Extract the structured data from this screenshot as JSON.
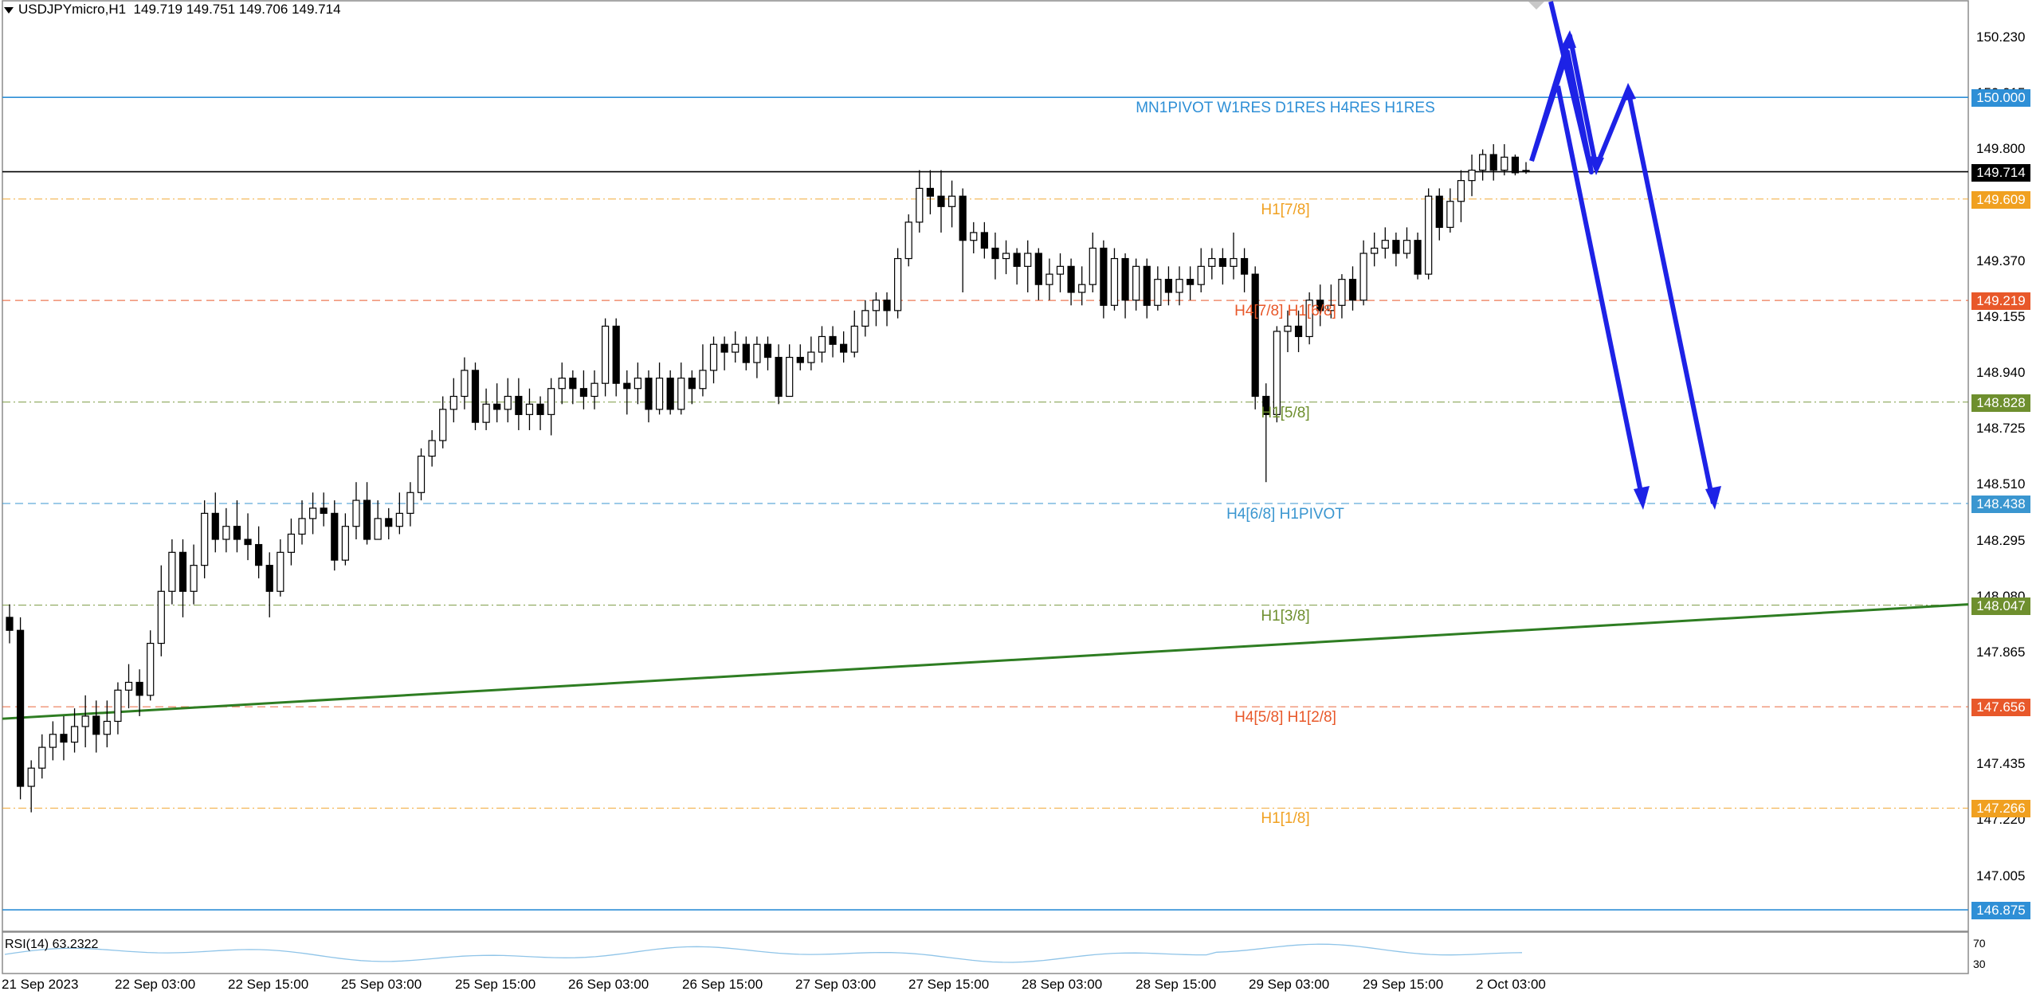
{
  "header": {
    "symbol": "USDJPYmicro,H1",
    "ohlc": "149.719 149.751 149.706 149.714"
  },
  "indicator": {
    "rsi_label": "RSI(14) 63.2322",
    "axis": [
      "70",
      "30"
    ]
  },
  "price_axis": {
    "range": [
      146.82,
      150.35
    ],
    "ticks": [
      "150.230",
      "150.015",
      "149.800",
      "149.370",
      "149.155",
      "148.940",
      "148.725",
      "148.510",
      "148.295",
      "148.080",
      "147.865",
      "147.435",
      "147.220",
      "147.005"
    ]
  },
  "time_axis": {
    "labels": [
      "21 Sep 2023",
      "22 Sep 03:00",
      "22 Sep 15:00",
      "25 Sep 03:00",
      "25 Sep 15:00",
      "26 Sep 03:00",
      "26 Sep 15:00",
      "27 Sep 03:00",
      "27 Sep 15:00",
      "28 Sep 03:00",
      "28 Sep 15:00",
      "29 Sep 03:00",
      "29 Sep 15:00",
      "2 Oct 03:00"
    ]
  },
  "levels": [
    {
      "price": 150.0,
      "tag": "150.000",
      "label": "MN1PIVOT W1RES D1RES H4RES H1RES",
      "color": "#2e8fd6",
      "style": "solid"
    },
    {
      "price": 149.714,
      "tag": "149.714",
      "label": "",
      "color": "#000000",
      "style": "solid"
    },
    {
      "price": 149.609,
      "tag": "149.609",
      "label": "H1[7/8]",
      "color": "#f0a020",
      "style": "dashdot"
    },
    {
      "price": 149.219,
      "tag": "149.219",
      "label": "H4[7/8] H1[6/8]",
      "color": "#e8582a",
      "style": "dashed"
    },
    {
      "price": 148.828,
      "tag": "148.828",
      "label": "H1[5/8]",
      "color": "#6e8f2e",
      "style": "dashdot"
    },
    {
      "price": 148.438,
      "tag": "148.438",
      "label": "H4[6/8] H1PIVOT",
      "color": "#3a96d0",
      "style": "dashed"
    },
    {
      "price": 148.047,
      "tag": "148.047",
      "label": "H1[3/8]",
      "color": "#6e8f2e",
      "style": "dashdot"
    },
    {
      "price": 147.656,
      "tag": "147.656",
      "label": "H4[5/8] H1[2/8]",
      "color": "#e8582a",
      "style": "dashed"
    },
    {
      "price": 147.266,
      "tag": "147.266",
      "label": "H1[1/8]",
      "color": "#f0a020",
      "style": "dashdot"
    },
    {
      "price": 146.875,
      "tag": "146.875",
      "label": "",
      "color": "#2e8fd6",
      "style": "solid"
    }
  ],
  "trendline": {
    "color": "#2e7d22",
    "start_price": 147.61,
    "end_price": 148.05
  },
  "forecast_arrow_color": "#1d22e6",
  "candles": [
    [
      148.0,
      147.95,
      148.05,
      147.9
    ],
    [
      147.95,
      147.35,
      148.0,
      147.3
    ],
    [
      147.35,
      147.42,
      147.45,
      147.25
    ],
    [
      147.42,
      147.5,
      147.55,
      147.38
    ],
    [
      147.5,
      147.55,
      147.6,
      147.45
    ],
    [
      147.55,
      147.52,
      147.62,
      147.45
    ],
    [
      147.52,
      147.58,
      147.65,
      147.48
    ],
    [
      147.58,
      147.62,
      147.7,
      147.5
    ],
    [
      147.62,
      147.55,
      147.68,
      147.48
    ],
    [
      147.55,
      147.6,
      147.68,
      147.5
    ],
    [
      147.6,
      147.72,
      147.75,
      147.55
    ],
    [
      147.72,
      147.75,
      147.82,
      147.65
    ],
    [
      147.75,
      147.7,
      147.8,
      147.62
    ],
    [
      147.7,
      147.9,
      147.95,
      147.68
    ],
    [
      147.9,
      148.1,
      148.2,
      147.85
    ],
    [
      148.1,
      148.25,
      148.3,
      148.05
    ],
    [
      148.25,
      148.1,
      148.3,
      148.0
    ],
    [
      148.1,
      148.2,
      148.28,
      148.05
    ],
    [
      148.2,
      148.4,
      148.45,
      148.15
    ],
    [
      148.4,
      148.3,
      148.48,
      148.25
    ],
    [
      148.3,
      148.35,
      148.42,
      148.25
    ],
    [
      148.35,
      148.3,
      148.45,
      148.25
    ],
    [
      148.3,
      148.28,
      148.4,
      148.22
    ],
    [
      148.28,
      148.2,
      148.35,
      148.15
    ],
    [
      148.2,
      148.1,
      148.25,
      148.0
    ],
    [
      148.1,
      148.25,
      148.3,
      148.08
    ],
    [
      148.25,
      148.32,
      148.38,
      148.2
    ],
    [
      148.32,
      148.38,
      148.45,
      148.28
    ],
    [
      148.38,
      148.42,
      148.48,
      148.32
    ],
    [
      148.42,
      148.4,
      148.48,
      148.35
    ],
    [
      148.4,
      148.22,
      148.45,
      148.18
    ],
    [
      148.22,
      148.35,
      148.4,
      148.2
    ],
    [
      148.35,
      148.45,
      148.52,
      148.3
    ],
    [
      148.45,
      148.3,
      148.52,
      148.28
    ],
    [
      148.3,
      148.38,
      148.45,
      148.3
    ],
    [
      148.38,
      148.35,
      148.42,
      148.3
    ],
    [
      148.35,
      148.4,
      148.48,
      148.32
    ],
    [
      148.4,
      148.48,
      148.52,
      148.35
    ],
    [
      148.48,
      148.62,
      148.65,
      148.45
    ],
    [
      148.62,
      148.68,
      148.72,
      148.58
    ],
    [
      148.68,
      148.8,
      148.85,
      148.65
    ],
    [
      148.8,
      148.85,
      148.92,
      148.75
    ],
    [
      148.85,
      148.95,
      149.0,
      148.8
    ],
    [
      148.95,
      148.75,
      148.98,
      148.72
    ],
    [
      148.75,
      148.82,
      148.88,
      148.72
    ],
    [
      148.82,
      148.8,
      148.9,
      148.75
    ],
    [
      148.8,
      148.85,
      148.92,
      148.75
    ],
    [
      148.85,
      148.78,
      148.92,
      148.72
    ],
    [
      148.78,
      148.82,
      148.88,
      148.72
    ],
    [
      148.82,
      148.78,
      148.85,
      148.72
    ],
    [
      148.78,
      148.88,
      148.92,
      148.7
    ],
    [
      148.88,
      148.92,
      148.98,
      148.82
    ],
    [
      148.92,
      148.88,
      148.95,
      148.82
    ],
    [
      148.88,
      148.85,
      148.95,
      148.8
    ],
    [
      148.85,
      148.9,
      148.95,
      148.8
    ],
    [
      148.9,
      149.12,
      149.15,
      148.85
    ],
    [
      149.12,
      148.9,
      149.15,
      148.85
    ],
    [
      148.9,
      148.88,
      148.95,
      148.78
    ],
    [
      148.88,
      148.92,
      148.98,
      148.82
    ],
    [
      148.92,
      148.8,
      148.95,
      148.75
    ],
    [
      148.8,
      148.92,
      148.98,
      148.78
    ],
    [
      148.92,
      148.8,
      148.95,
      148.78
    ],
    [
      148.8,
      148.92,
      148.98,
      148.78
    ],
    [
      148.92,
      148.88,
      148.95,
      148.82
    ],
    [
      148.88,
      148.95,
      149.05,
      148.85
    ],
    [
      148.95,
      149.05,
      149.08,
      148.9
    ],
    [
      149.05,
      149.02,
      149.08,
      148.95
    ],
    [
      149.02,
      149.05,
      149.1,
      148.98
    ],
    [
      149.05,
      148.98,
      149.08,
      148.95
    ],
    [
      148.98,
      149.05,
      149.08,
      148.92
    ],
    [
      149.05,
      149.0,
      149.08,
      148.95
    ],
    [
      149.0,
      148.85,
      149.05,
      148.82
    ],
    [
      148.85,
      149.0,
      149.05,
      148.85
    ],
    [
      149.0,
      148.98,
      149.05,
      148.95
    ],
    [
      148.98,
      149.02,
      149.08,
      148.95
    ],
    [
      149.02,
      149.08,
      149.12,
      148.98
    ],
    [
      149.08,
      149.05,
      149.12,
      149.0
    ],
    [
      149.05,
      149.02,
      149.1,
      148.98
    ],
    [
      149.02,
      149.12,
      149.18,
      149.0
    ],
    [
      149.12,
      149.18,
      149.22,
      149.08
    ],
    [
      149.18,
      149.22,
      149.25,
      149.12
    ],
    [
      149.22,
      149.18,
      149.25,
      149.12
    ],
    [
      149.18,
      149.38,
      149.42,
      149.15
    ],
    [
      149.38,
      149.52,
      149.55,
      149.35
    ],
    [
      149.52,
      149.65,
      149.72,
      149.48
    ],
    [
      149.65,
      149.62,
      149.72,
      149.55
    ],
    [
      149.62,
      149.58,
      149.72,
      149.48
    ],
    [
      149.58,
      149.62,
      149.68,
      149.5
    ],
    [
      149.62,
      149.45,
      149.65,
      149.25
    ],
    [
      149.45,
      149.48,
      149.52,
      149.4
    ],
    [
      149.48,
      149.42,
      149.52,
      149.38
    ],
    [
      149.42,
      149.38,
      149.48,
      149.3
    ],
    [
      149.38,
      149.4,
      149.45,
      149.32
    ],
    [
      149.4,
      149.35,
      149.42,
      149.28
    ],
    [
      149.35,
      149.4,
      149.45,
      149.25
    ],
    [
      149.4,
      149.28,
      149.42,
      149.22
    ],
    [
      149.28,
      149.32,
      149.38,
      149.22
    ],
    [
      149.32,
      149.35,
      149.4,
      149.25
    ],
    [
      149.35,
      149.25,
      149.38,
      149.2
    ],
    [
      149.25,
      149.28,
      149.35,
      149.2
    ],
    [
      149.28,
      149.42,
      149.48,
      149.25
    ],
    [
      149.42,
      149.2,
      149.45,
      149.15
    ],
    [
      149.2,
      149.38,
      149.42,
      149.18
    ],
    [
      149.38,
      149.22,
      149.4,
      149.15
    ],
    [
      149.22,
      149.35,
      149.38,
      149.18
    ],
    [
      149.35,
      149.2,
      149.38,
      149.15
    ],
    [
      149.2,
      149.3,
      149.35,
      149.18
    ],
    [
      149.3,
      149.25,
      149.35,
      149.2
    ],
    [
      149.25,
      149.3,
      149.35,
      149.2
    ],
    [
      149.3,
      149.28,
      149.35,
      149.22
    ],
    [
      149.28,
      149.35,
      149.42,
      149.25
    ],
    [
      149.35,
      149.38,
      149.42,
      149.3
    ],
    [
      149.38,
      149.35,
      149.42,
      149.28
    ],
    [
      149.35,
      149.38,
      149.48,
      149.3
    ],
    [
      149.38,
      149.32,
      149.42,
      149.25
    ],
    [
      149.32,
      148.85,
      149.35,
      148.8
    ],
    [
      148.85,
      148.78,
      148.9,
      148.52
    ],
    [
      148.78,
      149.1,
      149.12,
      148.75
    ],
    [
      149.1,
      149.12,
      149.18,
      149.02
    ],
    [
      149.12,
      149.08,
      149.18,
      149.02
    ],
    [
      149.08,
      149.22,
      149.25,
      149.05
    ],
    [
      149.22,
      149.18,
      149.28,
      149.12
    ],
    [
      149.18,
      149.2,
      149.28,
      149.15
    ],
    [
      149.2,
      149.3,
      149.32,
      149.15
    ],
    [
      149.3,
      149.22,
      149.35,
      149.18
    ],
    [
      149.22,
      149.4,
      149.45,
      149.2
    ],
    [
      149.4,
      149.42,
      149.48,
      149.35
    ],
    [
      149.42,
      149.45,
      149.5,
      149.38
    ],
    [
      149.45,
      149.4,
      149.48,
      149.35
    ],
    [
      149.4,
      149.45,
      149.5,
      149.38
    ],
    [
      149.45,
      149.32,
      149.48,
      149.3
    ],
    [
      149.32,
      149.62,
      149.65,
      149.3
    ],
    [
      149.62,
      149.5,
      149.65,
      149.45
    ],
    [
      149.5,
      149.6,
      149.65,
      149.48
    ],
    [
      149.6,
      149.68,
      149.72,
      149.52
    ],
    [
      149.68,
      149.72,
      149.78,
      149.62
    ],
    [
      149.72,
      149.78,
      149.8,
      149.68
    ],
    [
      149.78,
      149.72,
      149.82,
      149.68
    ],
    [
      149.72,
      149.77,
      149.82,
      149.7
    ],
    [
      149.77,
      149.71,
      149.78,
      149.7
    ],
    [
      149.719,
      149.714,
      149.751,
      149.706
    ]
  ]
}
